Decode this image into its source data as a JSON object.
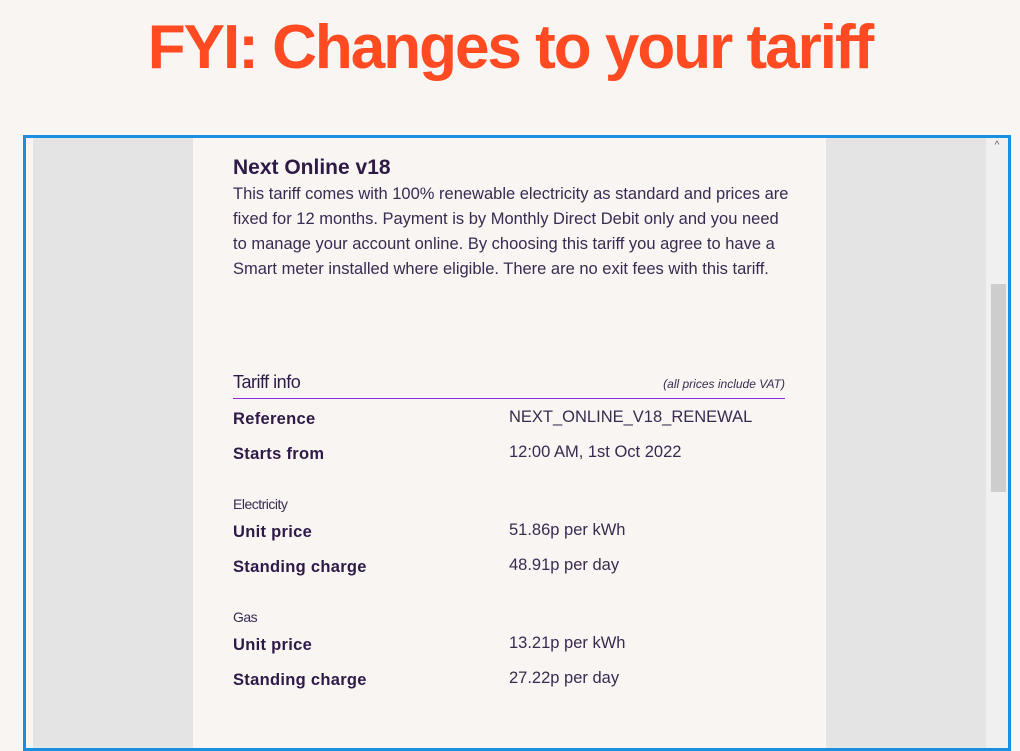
{
  "headline": "FYI: Changes to your tariff",
  "colors": {
    "headline": "#ff4a22",
    "frame_border": "#1a8fe0",
    "divider": "#8a2be2",
    "text": "#2e1a47"
  },
  "tariff": {
    "name": "Next Online v18",
    "description": "This tariff comes with 100% renewable electricity as standard and prices are fixed for 12 months. Payment is by Monthly Direct Debit only and you need to manage your account online. By choosing this tariff you agree to have a Smart meter installed where eligible. There are no exit fees with this tariff."
  },
  "info": {
    "title": "Tariff info",
    "note": "(all prices include VAT)",
    "reference": {
      "label": "Reference",
      "value": "NEXT_ONLINE_V18_RENEWAL"
    },
    "starts": {
      "label": "Starts from",
      "value": "12:00 AM, 1st Oct 2022"
    },
    "electricity": {
      "heading": "Electricity",
      "unit": {
        "label": "Unit price",
        "value": "51.86p per kWh"
      },
      "standing": {
        "label": "Standing charge",
        "value": "48.91p per day"
      }
    },
    "gas": {
      "heading": "Gas",
      "unit": {
        "label": "Unit price",
        "value": "13.21p per kWh"
      },
      "standing": {
        "label": "Standing charge",
        "value": "27.22p per day"
      }
    }
  },
  "scrollbar": {
    "up_icon": "chevron-up-icon",
    "position_percent": 30
  }
}
